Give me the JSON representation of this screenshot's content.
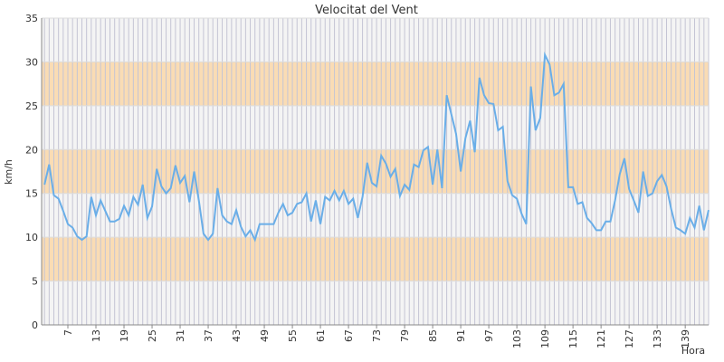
{
  "chart_data": {
    "type": "line",
    "title": "Velocitat del Vent",
    "ylabel": "km/h",
    "xlabel": "Hora",
    "x": [
      2,
      3,
      4,
      5,
      6,
      7,
      8,
      9,
      10,
      11,
      12,
      13,
      14,
      15,
      16,
      17,
      18,
      19,
      20,
      21,
      22,
      23,
      24,
      25,
      26,
      27,
      28,
      29,
      30,
      31,
      32,
      33,
      34,
      35,
      36,
      37,
      38,
      39,
      40,
      41,
      42,
      43,
      44,
      45,
      46,
      47,
      48,
      49,
      50,
      51,
      52,
      53,
      54,
      55,
      56,
      57,
      58,
      59,
      60,
      61,
      62,
      63,
      64,
      65,
      66,
      67,
      68,
      69,
      70,
      71,
      72,
      73,
      74,
      75,
      76,
      77,
      78,
      79,
      80,
      81,
      82,
      83,
      84,
      85,
      86,
      87,
      88,
      89,
      90,
      91,
      92,
      93,
      94,
      95,
      96,
      97,
      98,
      99,
      100,
      101,
      102,
      103,
      104,
      105,
      106,
      107,
      108,
      109,
      110,
      111,
      112,
      113,
      114,
      115,
      116,
      117,
      118,
      119,
      120,
      121,
      122,
      123,
      124,
      125,
      126,
      127,
      128,
      129,
      130,
      131,
      132,
      133,
      134,
      135,
      136,
      137,
      138,
      139,
      140,
      141,
      142,
      143,
      144
    ],
    "series": [
      {
        "name": "Velocitat del Vent",
        "color": "#6aaee8",
        "values": [
          16,
          18.3,
          14.8,
          14.4,
          13,
          11.5,
          11.1,
          10.1,
          9.7,
          10.1,
          14.6,
          12.5,
          14.2,
          13,
          11.8,
          11.8,
          12.1,
          13.6,
          12.5,
          14.6,
          13.7,
          16,
          12.2,
          13.5,
          17.8,
          15.8,
          15,
          15.6,
          18.2,
          16.2,
          17,
          14,
          17.5,
          14.2,
          10.4,
          9.7,
          10.4,
          15.6,
          12.5,
          11.8,
          11.5,
          13.1,
          11.2,
          10.1,
          10.8,
          9.7,
          11.5,
          11.5,
          11.5,
          11.5,
          12.8,
          13.8,
          12.5,
          12.8,
          13.8,
          14,
          15,
          11.8,
          14.2,
          11.5,
          14.6,
          14.2,
          15.3,
          14.2,
          15.3,
          13.8,
          14.4,
          12.2,
          14.6,
          18.5,
          16.2,
          15.8,
          19.3,
          18.4,
          16.9,
          17.8,
          14.7,
          16,
          15.4,
          18.3,
          18,
          19.9,
          20.3,
          16,
          20,
          15.6,
          26.2,
          24,
          21.8,
          17.5,
          21.3,
          23.3,
          19.7,
          28.2,
          26.2,
          25.3,
          25.2,
          22.2,
          22.6,
          16.4,
          14.8,
          14.4,
          12.7,
          11.5,
          27.2,
          22.2,
          23.6,
          30.8,
          29.7,
          26.2,
          26.5,
          27.5,
          15.7,
          15.7,
          13.8,
          14,
          12.2,
          11.6,
          10.8,
          10.8,
          11.8,
          11.8,
          14.2,
          17.2,
          19,
          15.5,
          14.2,
          12.8,
          17.5,
          14.7,
          15,
          16.4,
          17.1,
          15.8,
          13.2,
          11.1,
          10.8,
          10.4,
          12.2,
          11.1,
          13.6,
          10.8,
          13.1
        ]
      }
    ],
    "xlim": [
      1,
      144
    ],
    "xticks": [
      7,
      13,
      19,
      25,
      31,
      37,
      43,
      49,
      55,
      61,
      67,
      73,
      79,
      85,
      91,
      97,
      103,
      109,
      115,
      121,
      127,
      133,
      139
    ],
    "ylim": [
      0,
      35
    ],
    "yticks": [
      0,
      5,
      10,
      15,
      20,
      25,
      30,
      35
    ],
    "band_color": "#fadcb4",
    "grid": true
  }
}
